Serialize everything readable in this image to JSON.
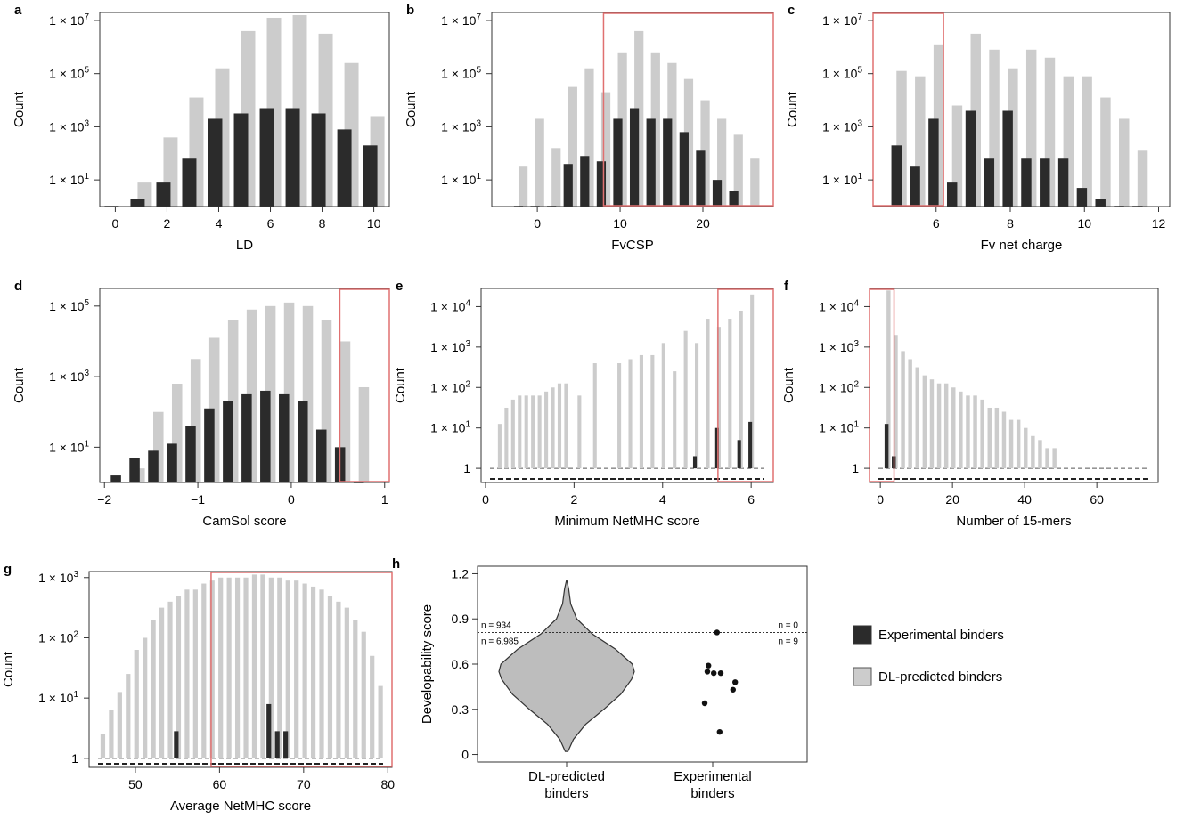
{
  "colors": {
    "experimental": "#2b2b2b",
    "dl": "#cccccc",
    "highlight": "#e07070"
  },
  "legend": {
    "experimental": "Experimental binders",
    "dl": "DL-predicted binders"
  },
  "chart_data": [
    {
      "id": "a",
      "letter": "a",
      "type": "bar",
      "scale": "log",
      "xlabel": "LD",
      "ylabel": "Count",
      "xlim": [
        -0.6,
        10.6
      ],
      "ylim": [
        0,
        7.3
      ],
      "xticks": [
        0,
        2,
        4,
        6,
        8,
        10
      ],
      "yticks": [
        {
          "v": 1,
          "main": "1 × 10",
          "exp": "1"
        },
        {
          "v": 3,
          "main": "1 × 10",
          "exp": "3"
        },
        {
          "v": 5,
          "main": "1 × 10",
          "exp": "5"
        },
        {
          "v": 7,
          "main": "1 × 10",
          "exp": "7"
        }
      ],
      "x": [
        0,
        1,
        2,
        3,
        4,
        5,
        6,
        7,
        8,
        9,
        10
      ],
      "series": [
        {
          "name": "DL-predicted binders",
          "values": [
            0,
            0.9,
            2.6,
            4.1,
            5.2,
            6.6,
            7.1,
            7.2,
            6.5,
            5.4,
            3.4
          ]
        },
        {
          "name": "Experimental binders",
          "values": [
            0,
            0.3,
            0.9,
            1.8,
            3.3,
            3.5,
            3.7,
            3.7,
            3.5,
            2.9,
            2.3
          ]
        }
      ],
      "highlight": null
    },
    {
      "id": "b",
      "letter": "b",
      "type": "bar",
      "scale": "log",
      "xlabel": "FvCSP",
      "ylabel": "Count",
      "xlim": [
        -5.5,
        28.5
      ],
      "ylim": [
        0,
        7.3
      ],
      "xticks": [
        0,
        10,
        20
      ],
      "yticks": [
        {
          "v": 1,
          "main": "1 × 10",
          "exp": "1"
        },
        {
          "v": 3,
          "main": "1 × 10",
          "exp": "3"
        },
        {
          "v": 5,
          "main": "1 × 10",
          "exp": "5"
        },
        {
          "v": 7,
          "main": "1 × 10",
          "exp": "7"
        }
      ],
      "x": [
        -2,
        0,
        2,
        4,
        6,
        8,
        10,
        12,
        14,
        16,
        18,
        20,
        22,
        24,
        26
      ],
      "series": [
        {
          "name": "DL-predicted binders",
          "values": [
            1.5,
            3.3,
            2.2,
            4.5,
            5.2,
            4.3,
            5.8,
            6.6,
            5.8,
            5.4,
            4.8,
            4.0,
            3.3,
            2.7,
            1.8
          ]
        },
        {
          "name": "Experimental binders",
          "values": [
            0,
            0,
            0,
            1.6,
            1.9,
            1.7,
            3.3,
            3.7,
            3.3,
            3.3,
            2.8,
            2.1,
            1.0,
            0.6,
            0
          ]
        }
      ],
      "highlight": [
        8,
        28.5
      ]
    },
    {
      "id": "c",
      "letter": "c",
      "type": "bar",
      "scale": "log",
      "xlabel": "Fv net charge",
      "ylabel": "Count",
      "xlim": [
        4.3,
        12.3
      ],
      "ylim": [
        0,
        7.3
      ],
      "xticks": [
        6,
        8,
        10,
        12
      ],
      "yticks": [
        {
          "v": 1,
          "main": "1 × 10",
          "exp": "1"
        },
        {
          "v": 3,
          "main": "1 × 10",
          "exp": "3"
        },
        {
          "v": 5,
          "main": "1 × 10",
          "exp": "5"
        },
        {
          "v": 7,
          "main": "1 × 10",
          "exp": "7"
        }
      ],
      "x": [
        5,
        5.5,
        6,
        6.5,
        7,
        7.5,
        8,
        8.5,
        9,
        9.5,
        10,
        10.5,
        11,
        11.5
      ],
      "series": [
        {
          "name": "DL-predicted binders",
          "values": [
            5.1,
            4.9,
            6.1,
            3.8,
            6.5,
            5.9,
            5.2,
            5.9,
            5.6,
            4.9,
            4.9,
            4.1,
            3.3,
            2.1
          ]
        },
        {
          "name": "Experimental binders",
          "values": [
            2.3,
            1.5,
            3.3,
            0.9,
            3.6,
            1.8,
            3.6,
            1.8,
            1.8,
            1.8,
            0.7,
            0.3,
            0,
            0
          ]
        }
      ],
      "highlight": [
        4.3,
        6.2
      ]
    },
    {
      "id": "d",
      "letter": "d",
      "type": "bar",
      "scale": "log",
      "xlabel": "CamSol score",
      "ylabel": "Count",
      "xlim": [
        -2.05,
        1.05
      ],
      "ylim": [
        0,
        5.5
      ],
      "xticks": [
        {
          "v": -2,
          "l": "−2"
        },
        {
          "v": -1,
          "l": "−1"
        },
        {
          "v": 0,
          "l": "0"
        },
        {
          "v": 1,
          "l": "1"
        }
      ],
      "yticks": [
        {
          "v": 1,
          "main": "1 × 10",
          "exp": "1"
        },
        {
          "v": 3,
          "main": "1 × 10",
          "exp": "3"
        },
        {
          "v": 5,
          "main": "1 × 10",
          "exp": "5"
        }
      ],
      "x": [
        -1.85,
        -1.65,
        -1.45,
        -1.25,
        -1.05,
        -0.85,
        -0.65,
        -0.45,
        -0.25,
        -0.05,
        0.15,
        0.35,
        0.55,
        0.75
      ],
      "series": [
        {
          "name": "DL-predicted binders",
          "values": [
            0,
            0.4,
            2.0,
            2.8,
            3.5,
            4.1,
            4.6,
            4.9,
            5.0,
            5.1,
            5.0,
            4.6,
            4.0,
            2.7
          ]
        },
        {
          "name": "Experimental binders",
          "values": [
            0.2,
            0.7,
            0.9,
            1.1,
            1.6,
            2.1,
            2.3,
            2.5,
            2.6,
            2.5,
            2.3,
            1.5,
            1.0,
            0
          ]
        }
      ],
      "highlight": [
        0.52,
        1.05
      ]
    },
    {
      "id": "e",
      "letter": "e",
      "type": "bar",
      "scale": "log",
      "xlabel": "Minimum NetMHC score",
      "ylabel": "Count",
      "xlim": [
        -0.1,
        6.5
      ],
      "ylim": [
        -0.35,
        4.45
      ],
      "xticks": [
        0,
        2,
        4,
        6
      ],
      "yticks": [
        {
          "v": 0,
          "main": "1",
          "exp": ""
        },
        {
          "v": 1,
          "main": "1 × 10",
          "exp": "1"
        },
        {
          "v": 2,
          "main": "1 × 10",
          "exp": "2"
        },
        {
          "v": 3,
          "main": "1 × 10",
          "exp": "3"
        },
        {
          "v": 4,
          "main": "1 × 10",
          "exp": "4"
        }
      ],
      "x": [
        0.3,
        0.45,
        0.6,
        0.75,
        0.9,
        1.05,
        1.2,
        1.35,
        1.5,
        1.65,
        1.8,
        2.1,
        2.45,
        3.0,
        3.25,
        3.5,
        3.75,
        4.0,
        4.25,
        4.5,
        4.75,
        5.0,
        5.25,
        5.5,
        5.75,
        6.0
      ],
      "series": [
        {
          "name": "DL-predicted binders",
          "values": [
            1.1,
            1.5,
            1.7,
            1.8,
            1.8,
            1.8,
            1.8,
            1.9,
            2.0,
            2.1,
            2.1,
            1.8,
            2.6,
            2.6,
            2.7,
            2.8,
            2.8,
            3.1,
            2.4,
            3.4,
            3.1,
            3.7,
            3.5,
            3.7,
            3.9,
            4.3
          ]
        },
        {
          "name": "Experimental binders",
          "values": [
            0,
            0,
            0,
            0,
            0,
            0,
            0,
            0,
            0,
            0,
            0,
            0,
            0,
            0,
            0,
            0,
            0,
            0,
            0,
            0,
            0.3,
            0,
            1.0,
            0,
            0.7,
            1.15
          ]
        }
      ],
      "highlight": [
        5.25,
        6.5
      ]
    },
    {
      "id": "f",
      "letter": "f",
      "type": "bar",
      "scale": "log",
      "xlabel": "Number of 15-mers",
      "ylabel": "Count",
      "xlim": [
        -3,
        77
      ],
      "ylim": [
        -0.35,
        4.45
      ],
      "xticks": [
        0,
        20,
        40,
        60
      ],
      "yticks": [
        {
          "v": 0,
          "main": "1",
          "exp": ""
        },
        {
          "v": 1,
          "main": "1 × 10",
          "exp": "1"
        },
        {
          "v": 2,
          "main": "1 × 10",
          "exp": "2"
        },
        {
          "v": 3,
          "main": "1 × 10",
          "exp": "3"
        },
        {
          "v": 4,
          "main": "1 × 10",
          "exp": "4"
        }
      ],
      "x": [
        2,
        4,
        6,
        8,
        10,
        12,
        14,
        16,
        18,
        20,
        22,
        24,
        26,
        28,
        30,
        32,
        34,
        36,
        38,
        40,
        42,
        44,
        46,
        48
      ],
      "series": [
        {
          "name": "DL-predicted binders",
          "values": [
            4.4,
            3.3,
            2.9,
            2.7,
            2.5,
            2.3,
            2.2,
            2.1,
            2.1,
            2.0,
            1.9,
            1.8,
            1.8,
            1.7,
            1.5,
            1.5,
            1.4,
            1.2,
            1.2,
            1.0,
            0.8,
            0.7,
            0.5,
            0.5
          ]
        },
        {
          "name": "Experimental binders",
          "values": [
            1.1,
            0.3,
            0,
            0,
            0,
            0,
            0,
            0,
            0,
            0,
            0,
            0,
            0,
            0,
            0,
            0,
            0,
            0,
            0,
            0,
            0,
            0,
            0,
            0
          ]
        }
      ],
      "highlight": [
        -3,
        3.8
      ]
    },
    {
      "id": "g",
      "letter": "g",
      "type": "bar",
      "scale": "log",
      "xlabel": "Average NetMHC score",
      "ylabel": "Count",
      "xlim": [
        44.5,
        80.5
      ],
      "ylim": [
        -0.15,
        3.1
      ],
      "xticks": [
        50,
        60,
        70,
        80
      ],
      "yticks": [
        {
          "v": 0,
          "main": "1",
          "exp": ""
        },
        {
          "v": 1,
          "main": "1 × 10",
          "exp": "1"
        },
        {
          "v": 2,
          "main": "1 × 10",
          "exp": "2"
        },
        {
          "v": 3,
          "main": "1 × 10",
          "exp": "3"
        }
      ],
      "x": [
        46,
        47,
        48,
        49,
        50,
        51,
        52,
        53,
        54,
        55,
        56,
        57,
        58,
        59,
        60,
        61,
        62,
        63,
        64,
        65,
        66,
        67,
        68,
        69,
        70,
        71,
        72,
        73,
        74,
        75,
        76,
        77,
        78,
        79
      ],
      "series": [
        {
          "name": "DL-predicted binders",
          "values": [
            0.4,
            0.8,
            1.1,
            1.4,
            1.8,
            2.0,
            2.3,
            2.5,
            2.6,
            2.7,
            2.8,
            2.8,
            2.9,
            2.95,
            3.0,
            3.0,
            3.0,
            3.0,
            3.05,
            3.05,
            3.0,
            3.0,
            2.95,
            2.95,
            2.9,
            2.85,
            2.8,
            2.7,
            2.6,
            2.5,
            2.3,
            2.1,
            1.7,
            1.2
          ]
        },
        {
          "name": "Experimental binders",
          "values": [
            0,
            0,
            0,
            0,
            0,
            0,
            0,
            0,
            0,
            0.45,
            0,
            0,
            0,
            0,
            0,
            0,
            0,
            0,
            0,
            0,
            0.9,
            0.45,
            0.45,
            0,
            0,
            0,
            0,
            0,
            0,
            0,
            0,
            0,
            0,
            0
          ]
        }
      ],
      "highlight": [
        59,
        80.5
      ]
    },
    {
      "id": "h",
      "letter": "h",
      "type": "violin",
      "xlabel": "",
      "ylabel": "Developability score",
      "ylim": [
        -0.05,
        1.25
      ],
      "yticks": [
        {
          "v": 0,
          "l": "0"
        },
        {
          "v": 0.3,
          "l": "0.3"
        },
        {
          "v": 0.6,
          "l": "0.6"
        },
        {
          "v": 0.9,
          "l": "0.9"
        },
        {
          "v": 1.2,
          "l": "1.2"
        }
      ],
      "categories": [
        [
          "DL-predicted",
          "binders"
        ],
        [
          "Experimental",
          "binders"
        ]
      ],
      "threshold": 0.81,
      "violin": {
        "min": 0.02,
        "max": 1.16,
        "points": [
          [
            0.02,
            0.02
          ],
          [
            0.1,
            0.1
          ],
          [
            0.2,
            0.28
          ],
          [
            0.3,
            0.55
          ],
          [
            0.4,
            0.8
          ],
          [
            0.5,
            0.96
          ],
          [
            0.55,
            1.0
          ],
          [
            0.6,
            0.97
          ],
          [
            0.7,
            0.72
          ],
          [
            0.8,
            0.38
          ],
          [
            0.9,
            0.15
          ],
          [
            1.0,
            0.06
          ],
          [
            1.1,
            0.03
          ],
          [
            1.16,
            0.0
          ]
        ]
      },
      "scatter": [
        {
          "x": -0.15,
          "y": 0.34
        },
        {
          "x": -0.1,
          "y": 0.55
        },
        {
          "x": -0.08,
          "y": 0.59
        },
        {
          "x": 0.02,
          "y": 0.54
        },
        {
          "x": 0.13,
          "y": 0.15
        },
        {
          "x": 0.08,
          "y": 0.81
        },
        {
          "x": 0.15,
          "y": 0.54
        },
        {
          "x": 0.38,
          "y": 0.43
        },
        {
          "x": 0.42,
          "y": 0.48
        }
      ],
      "annotations": {
        "dl_above": "n = 934",
        "dl_below": "n = 6,985",
        "exp_above": "n = 0",
        "exp_below": "n = 9"
      }
    }
  ]
}
